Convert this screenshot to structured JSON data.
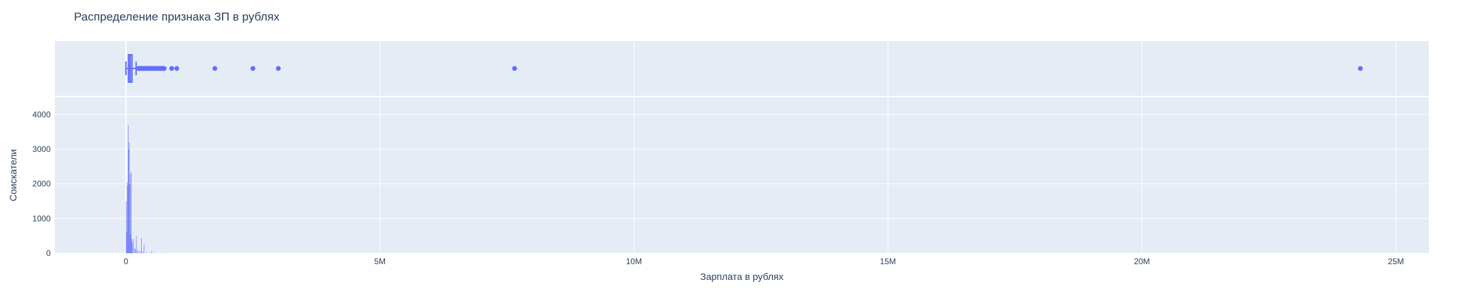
{
  "chart_data": [
    {
      "type": "box",
      "orientation": "horizontal",
      "color": "#636efa",
      "xlim": [
        -1400000,
        25650000
      ],
      "grid": true,
      "box_summary": {
        "q1": 50000,
        "median": 80000,
        "q3": 120000,
        "lower_fence": 1000,
        "upper_fence": 200000,
        "whisker_low": 0,
        "whisker_high": 200000
      },
      "dense_outlier_range": [
        200000,
        800000
      ],
      "outliers": [
        900000,
        1000000,
        1750000,
        2500000,
        3000000,
        7650000,
        24300000
      ]
    },
    {
      "type": "histogram",
      "color": "#636efa",
      "xlabel": "Зарплата в рублях",
      "ylabel": "Соискатели",
      "title": "Распределение признака ЗП в рублях",
      "ylim": [
        0,
        4500
      ],
      "xlim": [
        -1400000,
        25650000
      ],
      "x_ticks": [
        "0",
        "5M",
        "10M",
        "15M",
        "20M",
        "25M"
      ],
      "x_tick_values": [
        0,
        5000000,
        10000000,
        15000000,
        20000000,
        25000000
      ],
      "y_ticks": [
        "0",
        "1000",
        "2000",
        "3000",
        "4000"
      ],
      "y_tick_values": [
        0,
        1000,
        2000,
        3000,
        4000
      ],
      "grid": true,
      "bins": [
        {
          "x": 5000,
          "count": 1500
        },
        {
          "x": 15000,
          "count": 600
        },
        {
          "x": 25000,
          "count": 2050
        },
        {
          "x": 35000,
          "count": 1950
        },
        {
          "x": 45000,
          "count": 3700
        },
        {
          "x": 55000,
          "count": 3000
        },
        {
          "x": 65000,
          "count": 3200
        },
        {
          "x": 75000,
          "count": 2000
        },
        {
          "x": 85000,
          "count": 2300
        },
        {
          "x": 95000,
          "count": 550
        },
        {
          "x": 105000,
          "count": 2350
        },
        {
          "x": 115000,
          "count": 400
        },
        {
          "x": 125000,
          "count": 300
        },
        {
          "x": 145000,
          "count": 420
        },
        {
          "x": 165000,
          "count": 150
        },
        {
          "x": 185000,
          "count": 120
        },
        {
          "x": 205000,
          "count": 500
        },
        {
          "x": 225000,
          "count": 90
        },
        {
          "x": 255000,
          "count": 60
        },
        {
          "x": 285000,
          "count": 80
        },
        {
          "x": 305000,
          "count": 430
        },
        {
          "x": 335000,
          "count": 40
        },
        {
          "x": 355000,
          "count": 240
        },
        {
          "x": 405000,
          "count": 30
        },
        {
          "x": 455000,
          "count": 20
        },
        {
          "x": 505000,
          "count": 60
        },
        {
          "x": 555000,
          "count": 15
        },
        {
          "x": 605000,
          "count": 10
        },
        {
          "x": 705000,
          "count": 10
        },
        {
          "x": 805000,
          "count": 8
        },
        {
          "x": 1005000,
          "count": 5
        }
      ]
    }
  ]
}
